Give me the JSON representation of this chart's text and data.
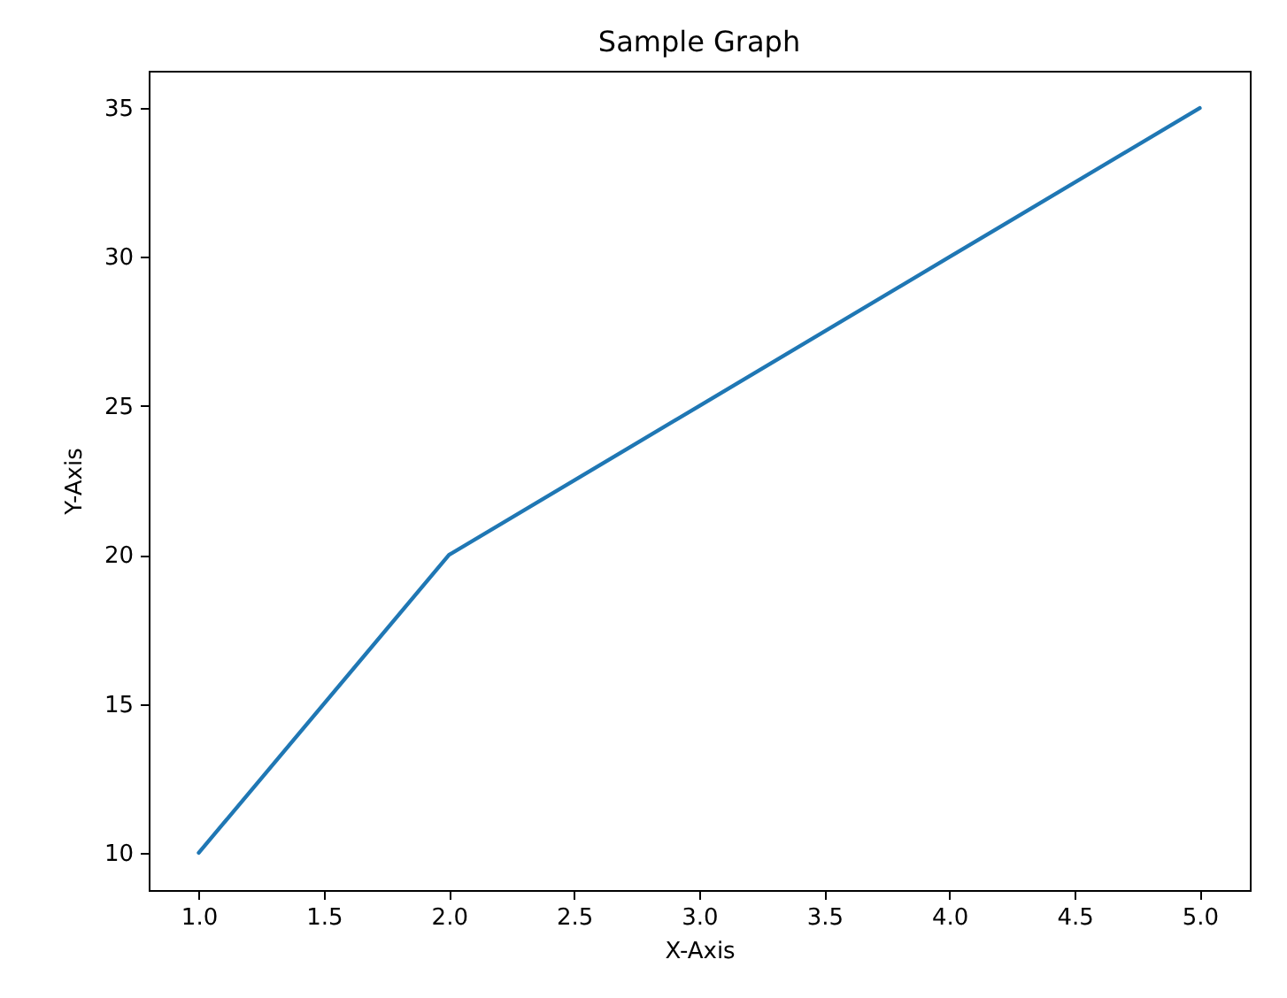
{
  "chart_data": {
    "type": "line",
    "title": "Sample Graph",
    "xlabel": "X-Axis",
    "ylabel": "Y-Axis",
    "x": [
      1,
      2,
      3,
      4,
      5
    ],
    "series": [
      {
        "color": "#1f77b4",
        "values": [
          10,
          20,
          25,
          30,
          35
        ]
      }
    ],
    "xlim": [
      0.8,
      5.2
    ],
    "ylim": [
      8.75,
      36.25
    ],
    "xticks": [
      {
        "value": 1,
        "label": "1.0"
      },
      1.5,
      {
        "value": 2,
        "label": "2.0"
      },
      2.5,
      {
        "value": 3,
        "label": "3.0"
      },
      3.5,
      {
        "value": 4,
        "label": "4.0"
      },
      4.5,
      {
        "value": 5,
        "label": "5.0"
      }
    ],
    "yticks": [
      10,
      15,
      20,
      25,
      30,
      35
    ],
    "grid": false
  }
}
